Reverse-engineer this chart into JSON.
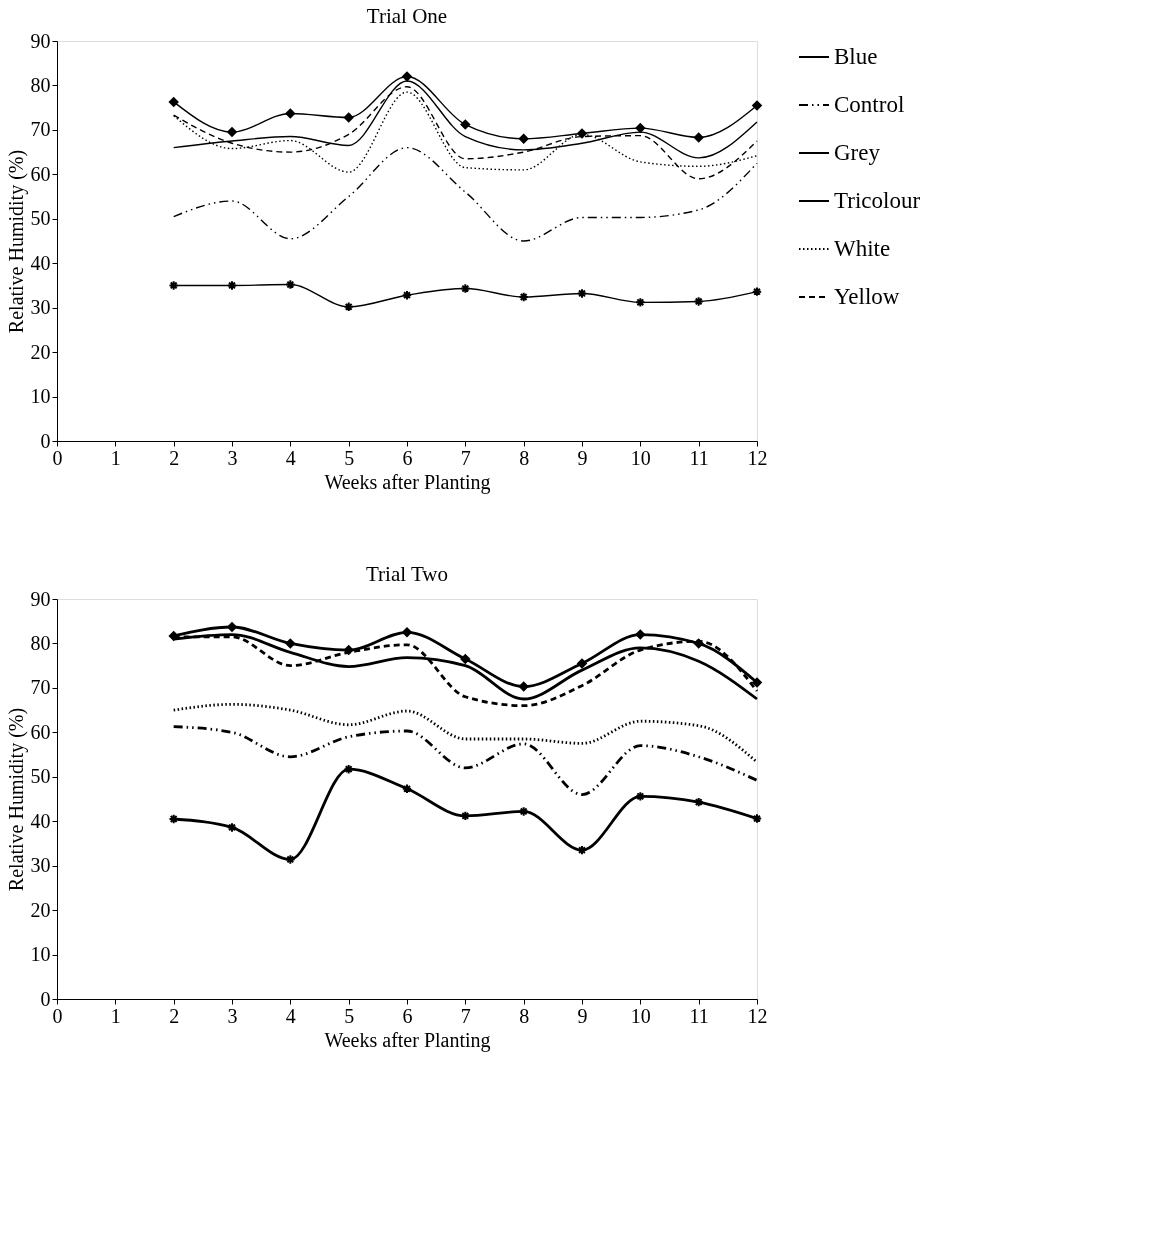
{
  "chart_data": [
    {
      "type": "line",
      "title": "Trial One",
      "xlabel": "Weeks after Planting",
      "ylabel": "Relative Humidity (%)",
      "xlim": [
        0,
        12
      ],
      "xticks": [
        0,
        1,
        2,
        3,
        4,
        5,
        6,
        7,
        8,
        9,
        10,
        11,
        12
      ],
      "ylim": [
        0,
        90
      ],
      "yticks": [
        0,
        10,
        20,
        30,
        40,
        50,
        60,
        70,
        80,
        90
      ],
      "grid": false,
      "legend": "right",
      "x": [
        2,
        3,
        4,
        5,
        6,
        7,
        8,
        9,
        10,
        11,
        12
      ],
      "series": [
        {
          "name": "Blue",
          "color": "#000000",
          "marker": "diamond",
          "line_style": "solid",
          "values": [
            76.3,
            69.5,
            73.7,
            72.8,
            82,
            71.2,
            68,
            69.2,
            70.4,
            68.3,
            75.5
          ]
        },
        {
          "name": "Control",
          "color": "#000000",
          "marker": "none",
          "line_style": "dashdot",
          "values": [
            50.5,
            54,
            45.5,
            55,
            66,
            56,
            45,
            50.3,
            50.3,
            52,
            62.5
          ]
        },
        {
          "name": "Grey",
          "color": "#000000",
          "marker": "cross",
          "line_style": "solid",
          "values": [
            35,
            35,
            35.2,
            30.2,
            32.8,
            34.3,
            32.4,
            33.2,
            31.2,
            31.4,
            33.6
          ]
        },
        {
          "name": "Tricolour",
          "color": "#000000",
          "marker": "none",
          "line_style": "solid",
          "values": [
            66,
            67.5,
            68.5,
            66.5,
            81,
            68.5,
            65.5,
            67,
            69.5,
            63.7,
            71.8
          ]
        },
        {
          "name": "White",
          "color": "#000000",
          "marker": "none",
          "line_style": "dotted",
          "values": [
            73.2,
            65.8,
            67.6,
            60.5,
            78.5,
            61.5,
            61,
            69,
            62.8,
            61.8,
            64.2
          ]
        },
        {
          "name": "Yellow",
          "color": "#000000",
          "marker": "none",
          "line_style": "dashed",
          "values": [
            73.3,
            67,
            65,
            69,
            79.7,
            63.5,
            65,
            68.5,
            68.7,
            59,
            67.5
          ]
        }
      ]
    },
    {
      "type": "line",
      "title": "Trial Two",
      "xlabel": "Weeks after Planting",
      "ylabel": "Relative Humidity (%)",
      "xlim": [
        0,
        12
      ],
      "xticks": [
        0,
        1,
        2,
        3,
        4,
        5,
        6,
        7,
        8,
        9,
        10,
        11,
        12
      ],
      "ylim": [
        0,
        90
      ],
      "yticks": [
        0,
        10,
        20,
        30,
        40,
        50,
        60,
        70,
        80,
        90
      ],
      "grid": false,
      "legend": "right",
      "x": [
        2,
        3,
        4,
        5,
        6,
        7,
        8,
        9,
        10,
        11,
        12
      ],
      "series": [
        {
          "name": "Blue",
          "color": "#000000",
          "marker": "diamond",
          "line_style": "solid",
          "values": [
            81.7,
            83.7,
            80,
            78.5,
            82.5,
            76.5,
            70.3,
            75.5,
            82,
            80,
            71.2
          ]
        },
        {
          "name": "Control",
          "color": "#000000",
          "marker": "none",
          "line_style": "dashdot",
          "values": [
            61.3,
            60,
            54.5,
            59,
            60.3,
            52,
            57.4,
            46,
            57,
            54.5,
            49.2
          ]
        },
        {
          "name": "Grey",
          "color": "#000000",
          "marker": "cross",
          "line_style": "solid",
          "values": [
            40.5,
            38.6,
            31.4,
            51.7,
            47.3,
            41.2,
            42.2,
            33.5,
            45.6,
            44.3,
            40.6
          ]
        },
        {
          "name": "Tricolour",
          "color": "#000000",
          "marker": "none",
          "line_style": "solid",
          "values": [
            81,
            82,
            78,
            74.8,
            76.8,
            75,
            67.5,
            74,
            79,
            76,
            67.5
          ]
        },
        {
          "name": "White",
          "color": "#000000",
          "marker": "none",
          "line_style": "dotted",
          "values": [
            65,
            66.3,
            65,
            61.7,
            64.8,
            58.5,
            58.5,
            57.5,
            62.5,
            61.5,
            53.3
          ]
        },
        {
          "name": "Yellow",
          "color": "#000000",
          "marker": "none",
          "line_style": "dashed",
          "values": [
            81.5,
            81.5,
            75,
            78,
            79.7,
            68,
            66,
            70.5,
            78.5,
            80.5,
            69.3
          ]
        }
      ]
    }
  ]
}
